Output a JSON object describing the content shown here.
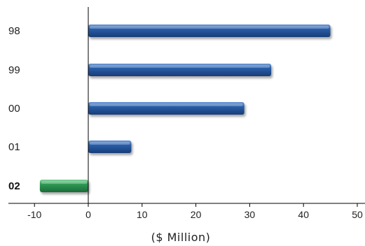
{
  "chart_data": {
    "type": "bar",
    "orientation": "horizontal",
    "categories": [
      "98",
      "99",
      "00",
      "01",
      "02"
    ],
    "values": [
      45,
      34,
      29,
      8,
      -9
    ],
    "highlight_category": "02",
    "xlabel": "($ Million)",
    "ylabel": "",
    "title": "",
    "xlim": [
      -15,
      51
    ],
    "xticks": [
      -10,
      0,
      10,
      20,
      30,
      40,
      50
    ],
    "grid": false,
    "colors": {
      "positive": "#2a5ea8",
      "positive_light": "#6f9ad6",
      "positive_dark": "#173d78",
      "negative": "#2f9a55",
      "negative_light": "#7fd39a",
      "negative_dark": "#1b6b38",
      "axis": "#000000"
    }
  }
}
